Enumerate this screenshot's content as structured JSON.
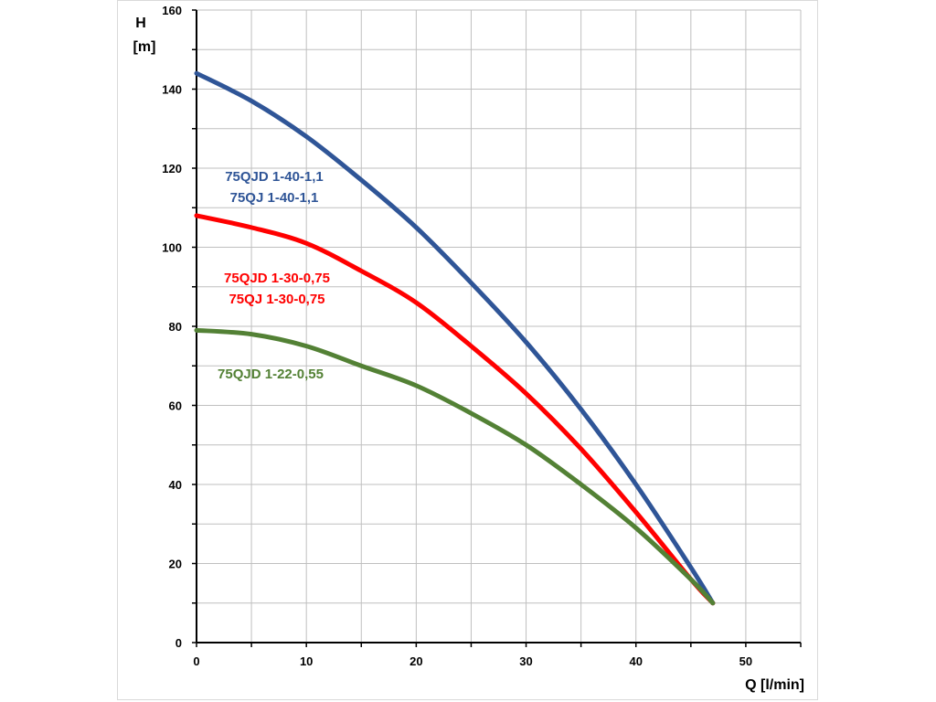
{
  "chart_data": {
    "type": "line",
    "xlabel": "Q [l/min]",
    "ylabel_line1": "H",
    "ylabel_line2": "[m]",
    "xlim": [
      0,
      55
    ],
    "ylim": [
      0,
      160
    ],
    "x_ticks": [
      0,
      10,
      20,
      30,
      40,
      50
    ],
    "y_ticks": [
      0,
      20,
      40,
      60,
      80,
      100,
      120,
      140,
      160
    ],
    "grid": true,
    "series": [
      {
        "labels": [
          "75QJD 1-40-1,1",
          "75QJ 1-40-1,1"
        ],
        "color": "#2f5597",
        "x": [
          0,
          5,
          10,
          15,
          20,
          25,
          30,
          35,
          40,
          45,
          47
        ],
        "y": [
          144,
          137,
          128,
          117,
          105,
          91,
          76,
          59,
          40,
          19,
          10
        ]
      },
      {
        "labels": [
          "75QJD 1-30-0,75",
          "75QJ 1-30-0,75"
        ],
        "color": "#ff0000",
        "x": [
          0,
          5,
          10,
          15,
          20,
          25,
          30,
          35,
          40,
          45,
          47
        ],
        "y": [
          108,
          105,
          101,
          94,
          86,
          75,
          63,
          49,
          33,
          16,
          10
        ]
      },
      {
        "labels": [
          "75QJD 1-22-0,55"
        ],
        "color": "#538135",
        "x": [
          0,
          5,
          10,
          15,
          20,
          25,
          30,
          35,
          40,
          45,
          47
        ],
        "y": [
          79,
          78,
          75,
          70,
          65,
          58,
          50,
          40,
          29,
          16,
          10
        ]
      }
    ]
  }
}
